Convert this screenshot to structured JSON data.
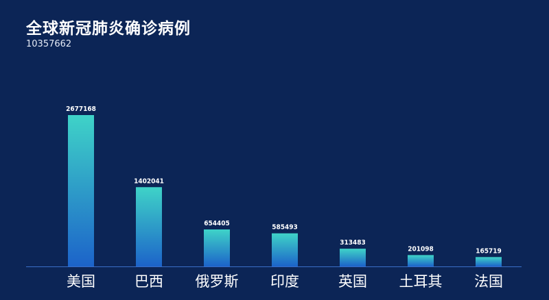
{
  "title": "全球新冠肺炎确诊病例",
  "subtitle": "10357662",
  "colors": {
    "background": "#0c2556",
    "bar_top": "#3fd3c8",
    "bar_bottom": "#1c63c9",
    "axis": "#3a6fc9"
  },
  "chart_data": {
    "type": "bar",
    "title": "全球新冠肺炎确诊病例",
    "subtitle": "10357662",
    "categories": [
      "美国",
      "巴西",
      "俄罗斯",
      "印度",
      "英国",
      "土耳其",
      "法国"
    ],
    "values": [
      2677168,
      1402041,
      654405,
      585493,
      313483,
      201098,
      165719
    ],
    "ylim": [
      0,
      2677168
    ],
    "grid": false,
    "data_labels": true
  }
}
